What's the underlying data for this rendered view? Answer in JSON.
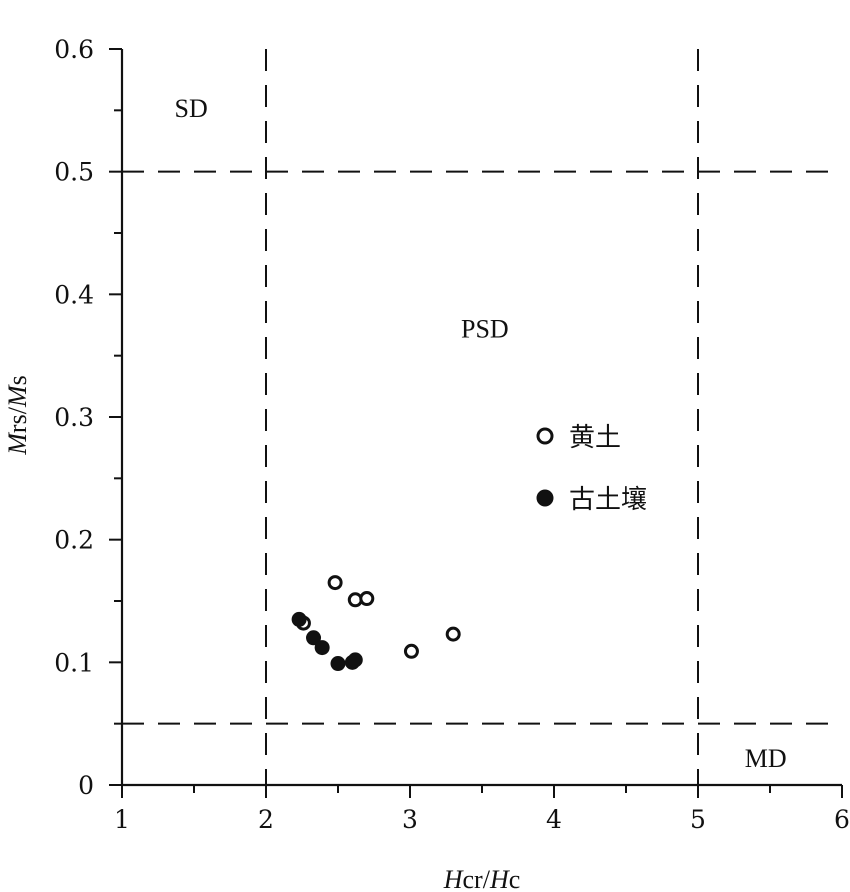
{
  "chart_data": {
    "type": "scatter",
    "title": "",
    "xlabel": "Hcr/Hc",
    "ylabel": "Mrs/Ms",
    "xlabel_parts": [
      {
        "text": "H",
        "italic": true
      },
      {
        "text": "cr/",
        "italic": false
      },
      {
        "text": "H",
        "italic": true
      },
      {
        "text": "c",
        "italic": false
      }
    ],
    "ylabel_parts": [
      {
        "text": "M",
        "italic": true
      },
      {
        "text": "rs/",
        "italic": false
      },
      {
        "text": "M",
        "italic": true
      },
      {
        "text": "s",
        "italic": false
      }
    ],
    "xlim": [
      1,
      6
    ],
    "ylim": [
      0,
      0.6
    ],
    "x_ticks": [
      1,
      2,
      3,
      4,
      5,
      6
    ],
    "x_tick_labels": [
      "1",
      "2",
      "3",
      "4",
      "5",
      "6"
    ],
    "y_ticks": [
      0,
      0.1,
      0.2,
      0.3,
      0.4,
      0.5,
      0.6
    ],
    "y_tick_labels": [
      "0",
      "0.1",
      "0.2",
      "0.3",
      "0.4",
      "0.5",
      "0.6"
    ],
    "grid": false,
    "legend_position": "right-center",
    "boundary_lines": {
      "vertical_x": [
        2,
        5
      ],
      "horizontal_y": [
        0.5,
        0.05
      ],
      "style": "dashed"
    },
    "regions": [
      {
        "label": "SD",
        "x": 1.48,
        "y": 0.552
      },
      {
        "label": "PSD",
        "x": 3.52,
        "y": 0.372
      },
      {
        "label": "MD",
        "x": 5.47,
        "y": 0.022
      }
    ],
    "series": [
      {
        "name": "黄土",
        "marker": "open-circle",
        "points": [
          [
            2.48,
            0.165
          ],
          [
            2.62,
            0.151
          ],
          [
            2.7,
            0.152
          ],
          [
            2.26,
            0.132
          ],
          [
            3.01,
            0.109
          ],
          [
            3.3,
            0.123
          ]
        ]
      },
      {
        "name": "古土壤",
        "marker": "filled-circle",
        "points": [
          [
            2.23,
            0.135
          ],
          [
            2.33,
            0.12
          ],
          [
            2.39,
            0.112
          ],
          [
            2.5,
            0.099
          ],
          [
            2.6,
            0.1
          ],
          [
            2.62,
            0.102
          ]
        ]
      }
    ]
  },
  "colors": {
    "ink": "#111111",
    "background": "#ffffff"
  }
}
